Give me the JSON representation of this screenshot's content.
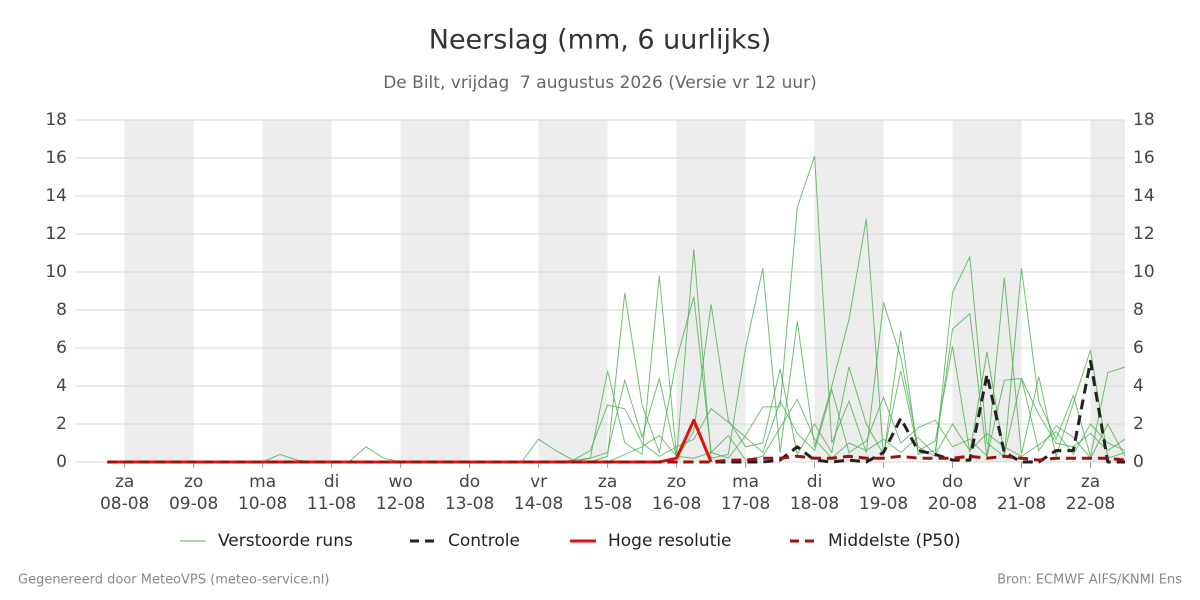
{
  "chart_data": {
    "type": "line",
    "title": "Neerslag (mm, 6 uurlijks)",
    "subtitle": "De Bilt, vrijdag  7 augustus 2026 (Versie vr 12 uur)",
    "footer_left": "Gegenereerd door MeteoVPS (meteo-service.nl)",
    "footer_right": "Bron: ECMWF AIFS/KNMI Ens",
    "ylim": [
      0,
      18
    ],
    "yticks": [
      0,
      2,
      4,
      6,
      8,
      10,
      12,
      14,
      16,
      18
    ],
    "xlim": [
      -0.72,
      14.5
    ],
    "xticks": [
      {
        "value": 0,
        "label": "za 08-08"
      },
      {
        "value": 1,
        "label": "zo 09-08"
      },
      {
        "value": 2,
        "label": "ma 10-08"
      },
      {
        "value": 3,
        "label": "di 11-08"
      },
      {
        "value": 4,
        "label": "wo 12-08"
      },
      {
        "value": 5,
        "label": "do 13-08"
      },
      {
        "value": 6,
        "label": "vr 14-08"
      },
      {
        "value": 7,
        "label": "za 15-08"
      },
      {
        "value": 8,
        "label": "zo 16-08"
      },
      {
        "value": 9,
        "label": "ma 17-08"
      },
      {
        "value": 10,
        "label": "di 18-08"
      },
      {
        "value": 11,
        "label": "wo 19-08"
      },
      {
        "value": 12,
        "label": "do 20-08"
      },
      {
        "value": 13,
        "label": "vr 21-08"
      },
      {
        "value": 14,
        "label": "za 22-08"
      }
    ],
    "grid": true,
    "x": [
      -0.25,
      0,
      0.25,
      0.5,
      0.75,
      1,
      1.25,
      1.5,
      1.75,
      2,
      2.25,
      2.5,
      2.75,
      3,
      3.25,
      3.5,
      3.75,
      4,
      4.25,
      4.5,
      4.75,
      5,
      5.25,
      5.5,
      5.75,
      6,
      6.25,
      6.5,
      6.75,
      7,
      7.25,
      7.5,
      7.75,
      8,
      8.25,
      8.5,
      8.75,
      9,
      9.25,
      9.5,
      9.75,
      10,
      10.25,
      10.5,
      10.75,
      11,
      11.25,
      11.5,
      11.75,
      12,
      12.25,
      12.5,
      12.75,
      13,
      13.25,
      13.5,
      13.75,
      14,
      14.25,
      14.5
    ],
    "series": [
      {
        "name": "Verstoorde runs",
        "color": "#4caf50",
        "runs": [
          [
            0,
            0,
            0,
            0,
            0,
            0,
            0,
            0,
            0,
            0,
            0,
            0,
            0,
            0,
            0,
            0,
            0,
            0,
            0,
            0,
            0,
            0,
            0,
            0,
            0,
            0,
            0,
            0,
            0,
            0.3,
            8.9,
            3.0,
            0.5,
            5.4,
            8.7,
            0.5,
            0.2,
            1.4,
            2.9,
            2.9,
            13.4,
            16.1,
            1.0,
            3.2,
            0.5,
            8.4,
            5.5,
            0.8,
            0.3,
            8.9,
            10.8,
            1.0,
            0.3,
            10.2,
            3.2,
            1.2,
            3.5,
            0.3,
            4.7,
            5.0
          ],
          [
            0,
            0,
            0,
            0,
            0,
            0,
            0,
            0,
            0,
            0,
            0.4,
            0.1,
            0,
            0,
            0,
            0.8,
            0.2,
            0,
            0,
            0,
            0,
            0,
            0,
            0,
            0,
            1.2,
            0.6,
            0.1,
            0.2,
            4.8,
            1.0,
            0.4,
            9.8,
            0.3,
            11.2,
            0.2,
            0.4,
            6.0,
            10.2,
            0.5,
            7.4,
            0.8,
            4.0,
            7.5,
            12.8,
            0.3,
            6.9,
            0.4,
            0.6,
            7.0,
            7.8,
            0.2,
            9.7,
            0.4,
            4.5,
            0.3,
            3.1,
            5.9,
            0.2,
            0.5
          ],
          [
            0,
            0,
            0,
            0,
            0,
            0,
            0,
            0,
            0,
            0,
            0,
            0,
            0,
            0,
            0,
            0,
            0,
            0,
            0,
            0,
            0,
            0,
            0,
            0,
            0,
            0,
            0,
            0,
            0.2,
            0.5,
            4.3,
            1.3,
            4.4,
            0.2,
            1.6,
            8.3,
            2.2,
            0.8,
            1.0,
            4.9,
            0.4,
            2.0,
            0.5,
            5.0,
            2.0,
            0.4,
            4.8,
            0.6,
            1.1,
            6.1,
            0.5,
            5.8,
            0.4,
            4.4,
            0.6,
            1.9,
            1.3,
            0.2,
            2.0,
            0.3
          ],
          [
            0,
            0,
            0,
            0,
            0,
            0,
            0,
            0,
            0,
            0,
            0,
            0,
            0,
            0,
            0,
            0,
            0,
            0,
            0,
            0,
            0,
            0,
            0,
            0,
            0,
            0,
            0,
            0.1,
            0.6,
            3.0,
            2.8,
            1.0,
            0.3,
            0.8,
            1.2,
            2.8,
            2.1,
            1.3,
            0.5,
            3.2,
            1.5,
            0.6,
            3.8,
            0.5,
            1.1,
            3.4,
            1.0,
            1.8,
            2.2,
            0.8,
            1.2,
            0.3,
            4.3,
            4.4,
            2.5,
            1.0,
            0.8,
            1.5,
            0.6,
            1.2
          ],
          [
            0,
            0,
            0,
            0,
            0,
            0,
            0,
            0,
            0,
            0,
            0,
            0,
            0,
            0,
            0,
            0,
            0,
            0,
            0,
            0,
            0,
            0,
            0,
            0,
            0,
            0,
            0,
            0,
            0,
            0,
            0.4,
            0.8,
            1.4,
            0.3,
            0.2,
            0.5,
            1.4,
            0.1,
            0.3,
            1.8,
            3.3,
            1.2,
            0.2,
            1.0,
            0.6,
            1.2,
            0.5,
            1.3,
            0.4,
            2.0,
            0.6,
            1.5,
            0.8,
            0.3,
            0.9,
            1.6,
            0.4,
            2.0,
            1.0,
            0.6
          ]
        ]
      },
      {
        "name": "Controle",
        "color": "#222222",
        "dashed": true,
        "values": [
          0,
          0,
          0,
          0,
          0,
          0,
          0,
          0,
          0,
          0,
          0,
          0,
          0,
          0,
          0,
          0,
          0,
          0,
          0,
          0,
          0,
          0,
          0,
          0,
          0,
          0,
          0,
          0,
          0,
          0,
          0,
          0,
          0,
          0,
          0,
          0,
          0,
          0,
          0,
          0.1,
          0.8,
          0.1,
          0,
          0.1,
          0,
          0.5,
          2.3,
          0.6,
          0.4,
          0.1,
          0.1,
          4.6,
          0.5,
          0,
          0,
          0.6,
          0.6,
          5.3,
          0,
          0
        ]
      },
      {
        "name": "Hoge resolutie",
        "color": "#e01010",
        "dashed": false,
        "values": [
          0,
          0,
          0,
          0,
          0,
          0,
          0,
          0,
          0,
          0,
          0,
          0,
          0,
          0,
          0,
          0,
          0,
          0,
          0,
          0,
          0,
          0,
          0,
          0,
          0,
          0,
          0,
          0,
          0,
          0,
          0,
          0,
          0,
          0.2,
          2.2,
          0,
          null,
          null,
          null,
          null,
          null,
          null,
          null,
          null,
          null,
          null,
          null,
          null,
          null,
          null,
          null,
          null,
          null,
          null,
          null,
          null,
          null,
          null,
          null,
          null
        ]
      },
      {
        "name": "Middelste (P50)",
        "color": "#a01010",
        "dashed": true,
        "values": [
          0,
          0,
          0,
          0,
          0,
          0,
          0,
          0,
          0,
          0,
          0,
          0,
          0,
          0,
          0,
          0,
          0,
          0,
          0,
          0,
          0,
          0,
          0,
          0,
          0,
          0,
          0,
          0,
          0,
          0,
          0,
          0,
          0,
          0,
          0,
          0,
          0.1,
          0.1,
          0.2,
          0.2,
          0.3,
          0.2,
          0.2,
          0.3,
          0.2,
          0.2,
          0.3,
          0.2,
          0.2,
          0.2,
          0.3,
          0.2,
          0.3,
          0.2,
          0.1,
          0.2,
          0.2,
          0.2,
          0.2,
          0.1
        ]
      }
    ]
  }
}
